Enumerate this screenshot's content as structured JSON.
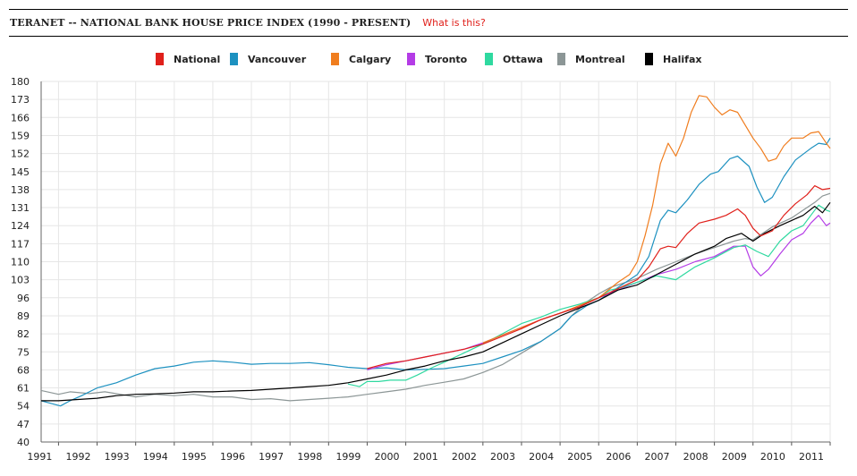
{
  "header": {
    "title": "TERANET -- NATIONAL BANK HOUSE PRICE INDEX (1990 - PRESENT)",
    "help_link": "What is this?"
  },
  "chart_data": {
    "type": "line",
    "title": "TERANET -- NATIONAL BANK HOUSE PRICE INDEX (1990 - PRESENT)",
    "xlabel": "",
    "ylabel": "",
    "xlim": [
      1990.55,
      2011.0
    ],
    "ylim": [
      40,
      180
    ],
    "yticks": [
      40,
      47,
      54,
      61,
      68,
      75,
      82,
      89,
      96,
      103,
      110,
      117,
      124,
      131,
      138,
      145,
      152,
      159,
      166,
      173,
      180
    ],
    "xticks": [
      1991,
      1992,
      1993,
      1994,
      1995,
      1996,
      1997,
      1998,
      1999,
      2000,
      2001,
      2002,
      2003,
      2004,
      2005,
      2006,
      2007,
      2008,
      2009,
      2010,
      2011
    ],
    "grid": true,
    "legend": "top-center",
    "series": [
      {
        "name": "Montreal",
        "color": "#8c9696",
        "points": [
          [
            1990.55,
            60
          ],
          [
            1991,
            58.5
          ],
          [
            1991.3,
            59.5
          ],
          [
            1991.8,
            58.8
          ],
          [
            1992.2,
            59.5
          ],
          [
            1992.6,
            58.5
          ],
          [
            1993,
            57.5
          ],
          [
            1993.5,
            58.5
          ],
          [
            1994,
            58
          ],
          [
            1994.5,
            58.5
          ],
          [
            1995,
            57.5
          ],
          [
            1995.5,
            57.5
          ],
          [
            1996,
            56.5
          ],
          [
            1996.5,
            56.8
          ],
          [
            1997,
            56
          ],
          [
            1997.5,
            56.5
          ],
          [
            1998,
            57
          ],
          [
            1998.5,
            57.5
          ],
          [
            1999,
            58.5
          ],
          [
            1999.5,
            59.5
          ],
          [
            2000,
            60.5
          ],
          [
            2000.5,
            62
          ],
          [
            2001,
            63.2
          ],
          [
            2001.5,
            64.5
          ],
          [
            2002,
            67
          ],
          [
            2002.5,
            70
          ],
          [
            2003,
            74.5
          ],
          [
            2003.5,
            79
          ],
          [
            2004,
            84
          ],
          [
            2004.3,
            89
          ],
          [
            2004.7,
            94.5
          ],
          [
            2005,
            97.5
          ],
          [
            2005.3,
            100
          ],
          [
            2005.6,
            101.5
          ],
          [
            2006,
            103.5
          ],
          [
            2006.5,
            107
          ],
          [
            2007,
            110
          ],
          [
            2007.5,
            113
          ],
          [
            2008,
            115.5
          ],
          [
            2008.5,
            118
          ],
          [
            2008.8,
            119
          ],
          [
            2009,
            118.5
          ],
          [
            2009.5,
            123.5
          ],
          [
            2010,
            127
          ],
          [
            2010.3,
            130
          ],
          [
            2010.6,
            133
          ],
          [
            2010.8,
            135.5
          ],
          [
            2011,
            136.5
          ]
        ]
      },
      {
        "name": "Vancouver",
        "color": "#1d91c0",
        "points": [
          [
            1990.55,
            56
          ],
          [
            1990.8,
            55
          ],
          [
            1991.05,
            54
          ],
          [
            1991.3,
            56
          ],
          [
            1991.6,
            58
          ],
          [
            1992,
            61
          ],
          [
            1992.5,
            63
          ],
          [
            1993,
            66
          ],
          [
            1993.5,
            68.5
          ],
          [
            1994,
            69.5
          ],
          [
            1994.5,
            71
          ],
          [
            1995,
            71.5
          ],
          [
            1995.5,
            71
          ],
          [
            1996,
            70.2
          ],
          [
            1996.5,
            70.5
          ],
          [
            1997,
            70.5
          ],
          [
            1997.5,
            70.8
          ],
          [
            1998,
            70
          ],
          [
            1998.5,
            69
          ],
          [
            1999,
            68.5
          ],
          [
            1999.5,
            68.8
          ],
          [
            2000,
            68
          ],
          [
            2000.5,
            68.2
          ],
          [
            2001,
            68.5
          ],
          [
            2001.5,
            69.5
          ],
          [
            2002,
            70.5
          ],
          [
            2002.5,
            73
          ],
          [
            2003,
            75.5
          ],
          [
            2003.5,
            79
          ],
          [
            2004,
            84
          ],
          [
            2004.3,
            89
          ],
          [
            2004.7,
            93
          ],
          [
            2005,
            95
          ],
          [
            2005.3,
            98
          ],
          [
            2005.6,
            101
          ],
          [
            2006,
            105
          ],
          [
            2006.3,
            112
          ],
          [
            2006.6,
            126
          ],
          [
            2006.8,
            130
          ],
          [
            2007,
            129
          ],
          [
            2007.3,
            134
          ],
          [
            2007.6,
            140
          ],
          [
            2007.9,
            144
          ],
          [
            2008.1,
            145
          ],
          [
            2008.4,
            150
          ],
          [
            2008.6,
            151
          ],
          [
            2008.9,
            147
          ],
          [
            2009.1,
            139
          ],
          [
            2009.3,
            133
          ],
          [
            2009.5,
            135
          ],
          [
            2009.8,
            143
          ],
          [
            2010.1,
            149.5
          ],
          [
            2010.5,
            154
          ],
          [
            2010.7,
            156
          ],
          [
            2010.9,
            155.5
          ],
          [
            2011,
            158
          ]
        ]
      },
      {
        "name": "Toronto",
        "color": "#b43ce6",
        "points": [
          [
            1999,
            68
          ],
          [
            1999.5,
            70
          ],
          [
            2000,
            71.5
          ],
          [
            2000.5,
            73
          ],
          [
            2001,
            74.5
          ],
          [
            2001.5,
            76
          ],
          [
            2002,
            78.5
          ],
          [
            2002.5,
            81.5
          ],
          [
            2003,
            84.5
          ],
          [
            2003.5,
            87.5
          ],
          [
            2004,
            90
          ],
          [
            2004.5,
            92.5
          ],
          [
            2005,
            96
          ],
          [
            2005.5,
            99
          ],
          [
            2006,
            102
          ],
          [
            2006.5,
            105
          ],
          [
            2007,
            107
          ],
          [
            2007.5,
            110
          ],
          [
            2008,
            112
          ],
          [
            2008.5,
            116
          ],
          [
            2008.8,
            116
          ],
          [
            2009,
            108
          ],
          [
            2009.2,
            104.5
          ],
          [
            2009.4,
            107
          ],
          [
            2009.7,
            113
          ],
          [
            2010,
            118.5
          ],
          [
            2010.3,
            121
          ],
          [
            2010.5,
            125
          ],
          [
            2010.7,
            128
          ],
          [
            2010.9,
            124
          ],
          [
            2011,
            125
          ]
        ]
      },
      {
        "name": "Ottawa",
        "color": "#2fd9a0",
        "points": [
          [
            1998.5,
            62.5
          ],
          [
            1998.8,
            61.5
          ],
          [
            1999,
            63.5
          ],
          [
            1999.3,
            63.5
          ],
          [
            1999.6,
            64
          ],
          [
            2000,
            64
          ],
          [
            2000.3,
            66
          ],
          [
            2000.7,
            69
          ],
          [
            2001,
            71
          ],
          [
            2001.5,
            74.5
          ],
          [
            2002,
            78
          ],
          [
            2002.5,
            82
          ],
          [
            2003,
            86
          ],
          [
            2003.5,
            88.5
          ],
          [
            2004,
            91.5
          ],
          [
            2004.5,
            93.5
          ],
          [
            2005,
            96
          ],
          [
            2005.3,
            99
          ],
          [
            2005.6,
            100
          ],
          [
            2006,
            102
          ],
          [
            2006.5,
            104.5
          ],
          [
            2007,
            103
          ],
          [
            2007.5,
            108
          ],
          [
            2008,
            111.5
          ],
          [
            2008.5,
            115.5
          ],
          [
            2008.8,
            116.5
          ],
          [
            2009.1,
            114
          ],
          [
            2009.4,
            112
          ],
          [
            2009.7,
            118
          ],
          [
            2010,
            122
          ],
          [
            2010.3,
            124
          ],
          [
            2010.5,
            128
          ],
          [
            2010.7,
            132
          ],
          [
            2010.9,
            130
          ],
          [
            2011,
            129.5
          ]
        ]
      },
      {
        "name": "Calgary",
        "color": "#f07d1e",
        "points": [
          [
            2002,
            78.5
          ],
          [
            2002.5,
            81.5
          ],
          [
            2003,
            84.5
          ],
          [
            2003.5,
            87.5
          ],
          [
            2004,
            90
          ],
          [
            2004.5,
            93
          ],
          [
            2005,
            96
          ],
          [
            2005.5,
            102
          ],
          [
            2005.8,
            105
          ],
          [
            2006,
            110
          ],
          [
            2006.2,
            120
          ],
          [
            2006.4,
            132
          ],
          [
            2006.6,
            148
          ],
          [
            2006.8,
            156
          ],
          [
            2007,
            151
          ],
          [
            2007.2,
            158
          ],
          [
            2007.4,
            168
          ],
          [
            2007.6,
            174.5
          ],
          [
            2007.8,
            174
          ],
          [
            2008,
            170
          ],
          [
            2008.2,
            167
          ],
          [
            2008.4,
            169
          ],
          [
            2008.6,
            168
          ],
          [
            2008.8,
            163
          ],
          [
            2009,
            158
          ],
          [
            2009.2,
            154
          ],
          [
            2009.4,
            149
          ],
          [
            2009.6,
            150
          ],
          [
            2009.8,
            155
          ],
          [
            2010,
            158
          ],
          [
            2010.3,
            158
          ],
          [
            2010.5,
            160
          ],
          [
            2010.7,
            160.5
          ],
          [
            2010.9,
            156
          ],
          [
            2011,
            154
          ]
        ]
      },
      {
        "name": "Halifax",
        "color": "#000000",
        "points": [
          [
            1990.55,
            56
          ],
          [
            1991,
            56
          ],
          [
            1991.5,
            56.5
          ],
          [
            1992,
            57
          ],
          [
            1992.5,
            58
          ],
          [
            1993,
            58.5
          ],
          [
            1993.5,
            58.7
          ],
          [
            1994,
            59
          ],
          [
            1994.5,
            59.5
          ],
          [
            1995,
            59.5
          ],
          [
            1995.5,
            59.8
          ],
          [
            1996,
            60
          ],
          [
            1996.5,
            60.5
          ],
          [
            1997,
            61
          ],
          [
            1997.5,
            61.5
          ],
          [
            1998,
            62
          ],
          [
            1998.5,
            63
          ],
          [
            1999,
            64.5
          ],
          [
            1999.5,
            66
          ],
          [
            2000,
            68
          ],
          [
            2000.5,
            69.5
          ],
          [
            2001,
            71.5
          ],
          [
            2001.5,
            73
          ],
          [
            2002,
            75
          ],
          [
            2002.5,
            78.5
          ],
          [
            2003,
            82
          ],
          [
            2003.5,
            85.5
          ],
          [
            2004,
            89
          ],
          [
            2004.5,
            92
          ],
          [
            2005,
            95
          ],
          [
            2005.5,
            99
          ],
          [
            2006,
            101
          ],
          [
            2006.5,
            105
          ],
          [
            2007,
            109
          ],
          [
            2007.5,
            113
          ],
          [
            2008,
            116
          ],
          [
            2008.3,
            119
          ],
          [
            2008.7,
            121
          ],
          [
            2009,
            118
          ],
          [
            2009.3,
            121
          ],
          [
            2009.7,
            124
          ],
          [
            2010,
            126
          ],
          [
            2010.3,
            128
          ],
          [
            2010.6,
            131.5
          ],
          [
            2010.8,
            129
          ],
          [
            2011,
            133
          ]
        ]
      },
      {
        "name": "National",
        "color": "#e0201b",
        "points": [
          [
            1999,
            68.5
          ],
          [
            1999.5,
            70.5
          ],
          [
            2000,
            71.5
          ],
          [
            2000.5,
            73
          ],
          [
            2001,
            74.5
          ],
          [
            2001.5,
            76
          ],
          [
            2002,
            78
          ],
          [
            2002.5,
            81
          ],
          [
            2003,
            84
          ],
          [
            2003.5,
            87.5
          ],
          [
            2004,
            90
          ],
          [
            2004.5,
            92.5
          ],
          [
            2005,
            96
          ],
          [
            2005.5,
            99.5
          ],
          [
            2006,
            103
          ],
          [
            2006.3,
            108
          ],
          [
            2006.6,
            115
          ],
          [
            2006.8,
            116
          ],
          [
            2007,
            115.5
          ],
          [
            2007.3,
            121
          ],
          [
            2007.6,
            125
          ],
          [
            2008,
            126.5
          ],
          [
            2008.3,
            128
          ],
          [
            2008.6,
            130.5
          ],
          [
            2008.8,
            128
          ],
          [
            2009,
            123
          ],
          [
            2009.2,
            120
          ],
          [
            2009.5,
            122
          ],
          [
            2009.8,
            128
          ],
          [
            2010.1,
            132.5
          ],
          [
            2010.4,
            136
          ],
          [
            2010.6,
            139.5
          ],
          [
            2010.8,
            138
          ],
          [
            2011,
            138.5
          ]
        ]
      }
    ]
  },
  "legend": [
    {
      "label": "National",
      "color": "#e0201b"
    },
    {
      "label": "Vancouver",
      "color": "#1d91c0"
    },
    {
      "label": "Calgary",
      "color": "#f07d1e"
    },
    {
      "label": "Toronto",
      "color": "#b43ce6"
    },
    {
      "label": "Ottawa",
      "color": "#2fd9a0"
    },
    {
      "label": "Montreal",
      "color": "#8c9696"
    },
    {
      "label": "Halifax",
      "color": "#000000"
    }
  ]
}
